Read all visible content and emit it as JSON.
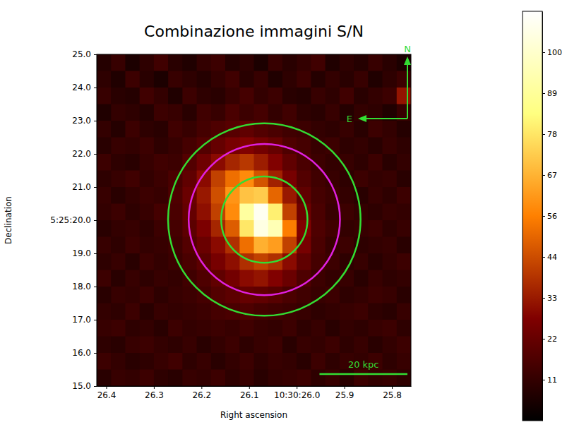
{
  "chart_data": {
    "type": "heatmap",
    "title": "Combinazione immagini S/N",
    "x_label": "Right ascension",
    "y_label": "Declination",
    "x": [
      26.405,
      26.375,
      26.345,
      26.315,
      26.285,
      26.255,
      26.225,
      26.195,
      26.165,
      26.135,
      26.105,
      26.075,
      26.045,
      26.015,
      25.985,
      25.955,
      25.925,
      25.895,
      25.865,
      25.835,
      25.805,
      25.775
    ],
    "y": [
      24.75,
      24.25,
      23.75,
      23.25,
      22.75,
      22.25,
      21.75,
      21.25,
      20.75,
      20.25,
      19.75,
      19.25,
      18.75,
      18.25,
      17.75,
      17.25,
      16.75,
      16.25,
      15.75,
      15.25
    ],
    "z": [
      [
        8,
        12,
        6,
        10,
        14,
        9,
        7,
        11,
        13,
        8,
        10,
        6,
        12,
        9,
        11,
        14,
        7,
        10,
        8,
        12,
        9,
        6
      ],
      [
        10,
        7,
        13,
        9,
        6,
        12,
        10,
        8,
        11,
        14,
        9,
        12,
        7,
        10,
        13,
        8,
        11,
        9,
        12,
        7,
        10,
        13
      ],
      [
        12,
        9,
        8,
        14,
        11,
        7,
        13,
        10,
        9,
        12,
        15,
        11,
        13,
        9,
        8,
        12,
        10,
        14,
        9,
        11,
        13,
        32
      ],
      [
        7,
        11,
        10,
        8,
        13,
        12,
        9,
        14,
        12,
        16,
        13,
        15,
        11,
        14,
        10,
        9,
        12,
        8,
        11,
        10,
        7,
        12
      ],
      [
        11,
        8,
        13,
        10,
        9,
        14,
        12,
        15,
        17,
        19,
        21,
        18,
        16,
        14,
        13,
        11,
        10,
        12,
        9,
        13,
        11,
        8
      ],
      [
        9,
        12,
        11,
        13,
        10,
        12,
        15,
        18,
        22,
        26,
        28,
        25,
        22,
        17,
        15,
        12,
        13,
        10,
        11,
        9,
        12,
        10
      ],
      [
        13,
        10,
        9,
        12,
        14,
        13,
        18,
        24,
        30,
        36,
        40,
        34,
        28,
        21,
        16,
        13,
        11,
        12,
        10,
        13,
        9,
        11
      ],
      [
        10,
        12,
        14,
        11,
        13,
        16,
        21,
        30,
        42,
        52,
        58,
        46,
        35,
        26,
        18,
        14,
        12,
        10,
        13,
        11,
        12,
        9
      ],
      [
        12,
        9,
        11,
        13,
        12,
        17,
        23,
        33,
        45,
        60,
        70,
        72,
        50,
        33,
        21,
        15,
        13,
        11,
        9,
        12,
        10,
        13
      ],
      [
        11,
        13,
        10,
        12,
        15,
        16,
        22,
        31,
        42,
        58,
        90,
        108,
        80,
        42,
        24,
        16,
        12,
        13,
        11,
        10,
        12,
        11
      ],
      [
        9,
        11,
        12,
        10,
        13,
        15,
        20,
        27,
        36,
        48,
        78,
        105,
        95,
        55,
        28,
        17,
        14,
        11,
        12,
        13,
        10,
        12
      ],
      [
        12,
        10,
        13,
        11,
        12,
        14,
        18,
        23,
        30,
        38,
        52,
        66,
        62,
        42,
        26,
        16,
        12,
        13,
        10,
        11,
        12,
        9
      ],
      [
        10,
        12,
        9,
        13,
        11,
        13,
        16,
        20,
        26,
        31,
        38,
        42,
        38,
        30,
        21,
        15,
        13,
        10,
        12,
        9,
        11,
        13
      ],
      [
        13,
        9,
        12,
        10,
        12,
        11,
        14,
        17,
        21,
        25,
        30,
        32,
        28,
        23,
        17,
        13,
        11,
        12,
        9,
        12,
        10,
        11
      ],
      [
        9,
        12,
        11,
        13,
        10,
        12,
        13,
        15,
        18,
        20,
        22,
        21,
        19,
        16,
        14,
        12,
        13,
        10,
        11,
        13,
        12,
        9
      ],
      [
        11,
        10,
        13,
        9,
        12,
        11,
        12,
        13,
        15,
        16,
        17,
        15,
        14,
        13,
        12,
        10,
        11,
        12,
        13,
        10,
        9,
        12
      ],
      [
        12,
        13,
        10,
        11,
        9,
        13,
        11,
        12,
        13,
        12,
        14,
        12,
        11,
        13,
        10,
        12,
        9,
        11,
        10,
        12,
        13,
        10
      ],
      [
        10,
        9,
        12,
        13,
        11,
        10,
        12,
        9,
        11,
        13,
        10,
        12,
        13,
        9,
        12,
        11,
        13,
        10,
        12,
        9,
        11,
        13
      ],
      [
        13,
        11,
        9,
        10,
        12,
        14,
        10,
        12,
        9,
        11,
        13,
        10,
        12,
        11,
        9,
        13,
        10,
        12,
        11,
        13,
        10,
        12
      ],
      [
        9,
        12,
        11,
        13,
        10,
        9,
        12,
        11,
        13,
        10,
        12,
        9,
        11,
        12,
        13,
        10,
        12,
        9,
        13,
        11,
        12,
        10
      ]
    ],
    "xlim": [
      26.42,
      25.76
    ],
    "ylim": [
      15,
      25
    ],
    "xticks": [
      26.4,
      26.3,
      26.2,
      26.1,
      {
        "value": 26.0,
        "label": "10:30:26.0"
      },
      25.9,
      25.8
    ],
    "yticks": [
      {
        "value": 15,
        "label": "15.0"
      },
      {
        "value": 16,
        "label": "16.0"
      },
      {
        "value": 17,
        "label": "17.0"
      },
      {
        "value": 18,
        "label": "18.0"
      },
      {
        "value": 19,
        "label": "19.0"
      },
      {
        "value": 20,
        "label": "5:25:20.0"
      },
      {
        "value": 21,
        "label": "21.0"
      },
      {
        "value": 22,
        "label": "22.0"
      },
      {
        "value": 23,
        "label": "23.0"
      },
      {
        "value": 24,
        "label": "24.0"
      },
      {
        "value": 25,
        "label": "25.0"
      }
    ],
    "colorbar_range": [
      0,
      111
    ],
    "colorbar_ticks": [
      {
        "value": 11.1,
        "label": "11"
      },
      {
        "value": 22.2,
        "label": "22"
      },
      {
        "value": 33.3,
        "label": "33"
      },
      {
        "value": 44.4,
        "label": "44"
      },
      {
        "value": 55.5,
        "label": "56"
      },
      {
        "value": 66.6,
        "label": "67"
      },
      {
        "value": 77.7,
        "label": "78"
      },
      {
        "value": 88.8,
        "label": "89"
      },
      {
        "value": 99.9,
        "label": "100"
      }
    ],
    "circles": [
      {
        "ra": 26.068,
        "dec": 20.02,
        "radius": 1.3,
        "color": "#33dd33"
      },
      {
        "ra": 26.068,
        "dec": 20.02,
        "radius": 2.28,
        "color": "#e020e0"
      },
      {
        "ra": 26.068,
        "dec": 20.02,
        "radius": 2.9,
        "color": "#33dd33"
      }
    ],
    "scale_bar": {
      "label": "20 kpc",
      "length": 2.65
    },
    "compass": {
      "north": "N",
      "east": "E"
    }
  }
}
